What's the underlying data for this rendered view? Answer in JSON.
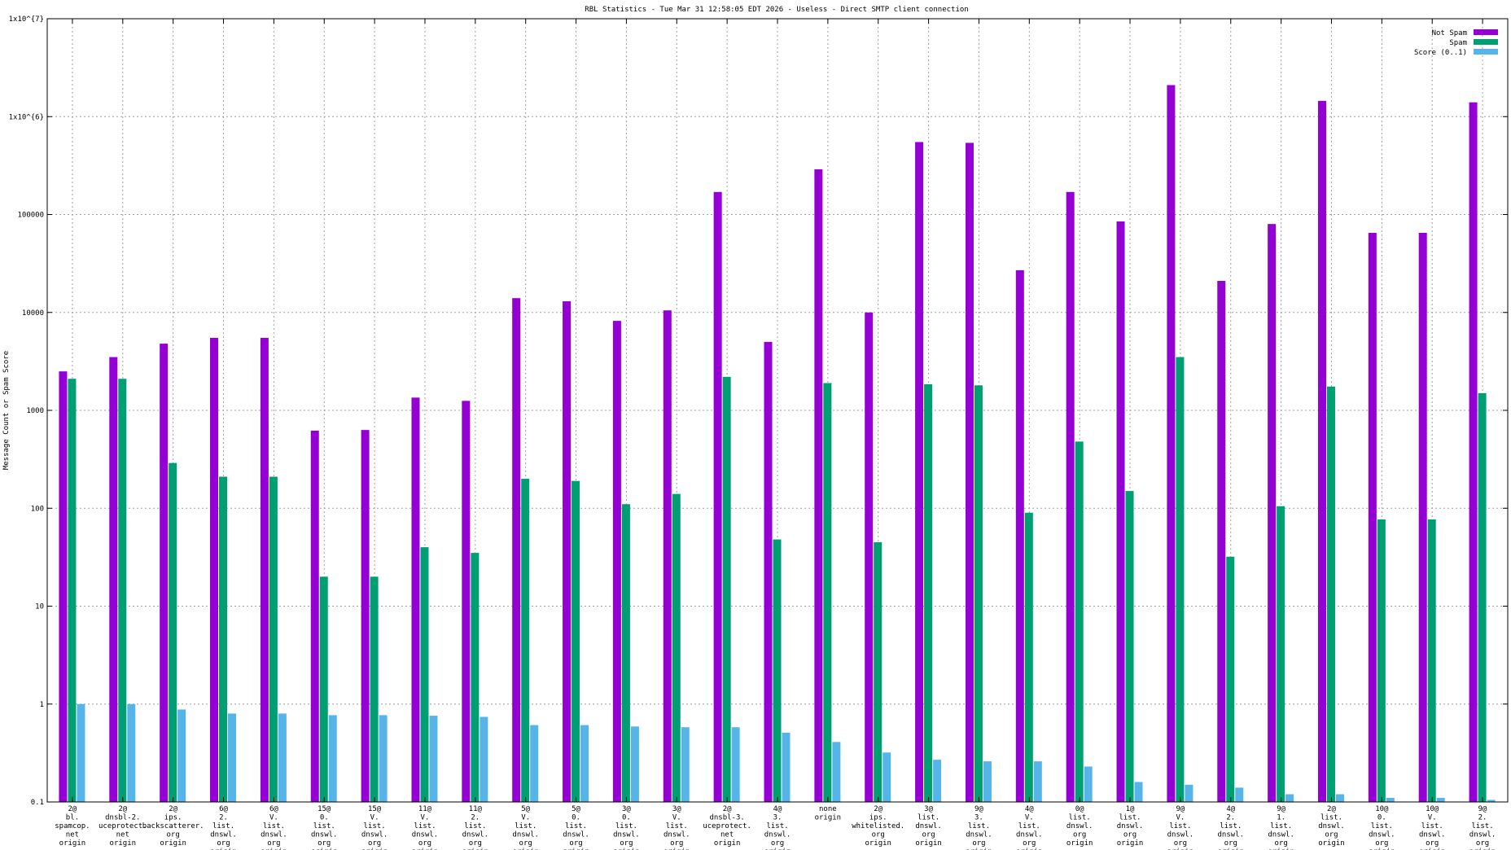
{
  "chart_data": {
    "type": "bar",
    "title": "RBL Statistics - Tue Mar 31 12:58:05 EDT 2026 - Useless - Direct SMTP client connection",
    "xlabel": "",
    "ylabel": "Message Count or Spam Score",
    "y_scale": "log",
    "ylim": [
      0.1,
      10000000
    ],
    "grid": true,
    "legend_position": "top-right",
    "y_ticks": [
      {
        "value": 10000000,
        "label": "1x10^{7}"
      },
      {
        "value": 1000000,
        "label": "1x10^{6}"
      },
      {
        "value": 100000,
        "label": "100000"
      },
      {
        "value": 10000,
        "label": "10000"
      },
      {
        "value": 1000,
        "label": "1000"
      },
      {
        "value": 100,
        "label": "100"
      },
      {
        "value": 10,
        "label": "10"
      },
      {
        "value": 1,
        "label": "1"
      },
      {
        "value": 0.1,
        "label": "0.1"
      }
    ],
    "categories": [
      [
        "2@",
        "bl.",
        "spamcop.",
        "net",
        "origin"
      ],
      [
        "2@",
        "dnsbl-2.",
        "uceprotect.",
        "net",
        "origin"
      ],
      [
        "2@",
        "ips.",
        "backscatterer.",
        "org",
        "origin"
      ],
      [
        "6@",
        "2.",
        "list.",
        "dnswl.",
        "org",
        "origin"
      ],
      [
        "6@",
        "V.",
        "list.",
        "dnswl.",
        "org",
        "origin"
      ],
      [
        "15@",
        "0.",
        "list.",
        "dnswl.",
        "org",
        "origin"
      ],
      [
        "15@",
        "V.",
        "list.",
        "dnswl.",
        "org",
        "origin"
      ],
      [
        "11@",
        "V.",
        "list.",
        "dnswl.",
        "org",
        "origin"
      ],
      [
        "11@",
        "2.",
        "list.",
        "dnswl.",
        "org",
        "origin"
      ],
      [
        "5@",
        "V.",
        "list.",
        "dnswl.",
        "org",
        "origin"
      ],
      [
        "5@",
        "0.",
        "list.",
        "dnswl.",
        "org",
        "origin"
      ],
      [
        "3@",
        "0.",
        "list.",
        "dnswl.",
        "org",
        "origin"
      ],
      [
        "3@",
        "V.",
        "list.",
        "dnswl.",
        "org",
        "origin"
      ],
      [
        "2@",
        "dnsbl-3.",
        "uceprotect.",
        "net",
        "origin"
      ],
      [
        "4@",
        "3.",
        "list.",
        "dnswl.",
        "org",
        "origin"
      ],
      [
        "none",
        "origin"
      ],
      [
        "2@",
        "ips.",
        "whitelisted.",
        "org",
        "origin"
      ],
      [
        "3@",
        "list.",
        "dnswl.",
        "org",
        "origin"
      ],
      [
        "9@",
        "3.",
        "list.",
        "dnswl.",
        "org",
        "origin"
      ],
      [
        "4@",
        "V.",
        "list.",
        "dnswl.",
        "org",
        "origin"
      ],
      [
        "0@",
        "list.",
        "dnswl.",
        "org",
        "origin"
      ],
      [
        "1@",
        "list.",
        "dnswl.",
        "org",
        "origin"
      ],
      [
        "9@",
        "V.",
        "list.",
        "dnswl.",
        "org",
        "origin"
      ],
      [
        "4@",
        "2.",
        "list.",
        "dnswl.",
        "org",
        "origin"
      ],
      [
        "9@",
        "1.",
        "list.",
        "dnswl.",
        "org",
        "origin"
      ],
      [
        "2@",
        "list.",
        "dnswl.",
        "org",
        "origin"
      ],
      [
        "10@",
        "0.",
        "list.",
        "dnswl.",
        "org",
        "origin"
      ],
      [
        "10@",
        "V.",
        "list.",
        "dnswl.",
        "org",
        "origin"
      ],
      [
        "9@",
        "2.",
        "list.",
        "dnswl.",
        "org",
        "origin"
      ]
    ],
    "series": [
      {
        "name": "Not Spam",
        "color": "#9400d3",
        "values": [
          2500,
          3500,
          4800,
          5500,
          5500,
          620,
          630,
          1350,
          1250,
          14000,
          13000,
          8200,
          10500,
          170000,
          5000,
          290000,
          10000,
          550000,
          540000,
          27000,
          170000,
          85000,
          2100000,
          21000,
          80000,
          1450000,
          65000,
          65000,
          1400000
        ]
      },
      {
        "name": "Spam",
        "color": "#009e73",
        "values": [
          2100,
          2100,
          290,
          210,
          210,
          20,
          20,
          40,
          35,
          200,
          190,
          110,
          140,
          2200,
          48,
          1900,
          45,
          1850,
          1800,
          90,
          480,
          150,
          3500,
          32,
          105,
          1750,
          77,
          77,
          1500
        ]
      },
      {
        "name": "Score (0..1)",
        "color": "#56b4e9",
        "values": [
          1.0,
          1.0,
          0.88,
          0.8,
          0.8,
          0.77,
          0.77,
          0.76,
          0.74,
          0.61,
          0.61,
          0.59,
          0.58,
          0.58,
          0.51,
          0.41,
          0.32,
          0.27,
          0.26,
          0.26,
          0.23,
          0.16,
          0.15,
          0.14,
          0.12,
          0.12,
          0.11,
          0.11,
          0.105
        ]
      }
    ]
  }
}
